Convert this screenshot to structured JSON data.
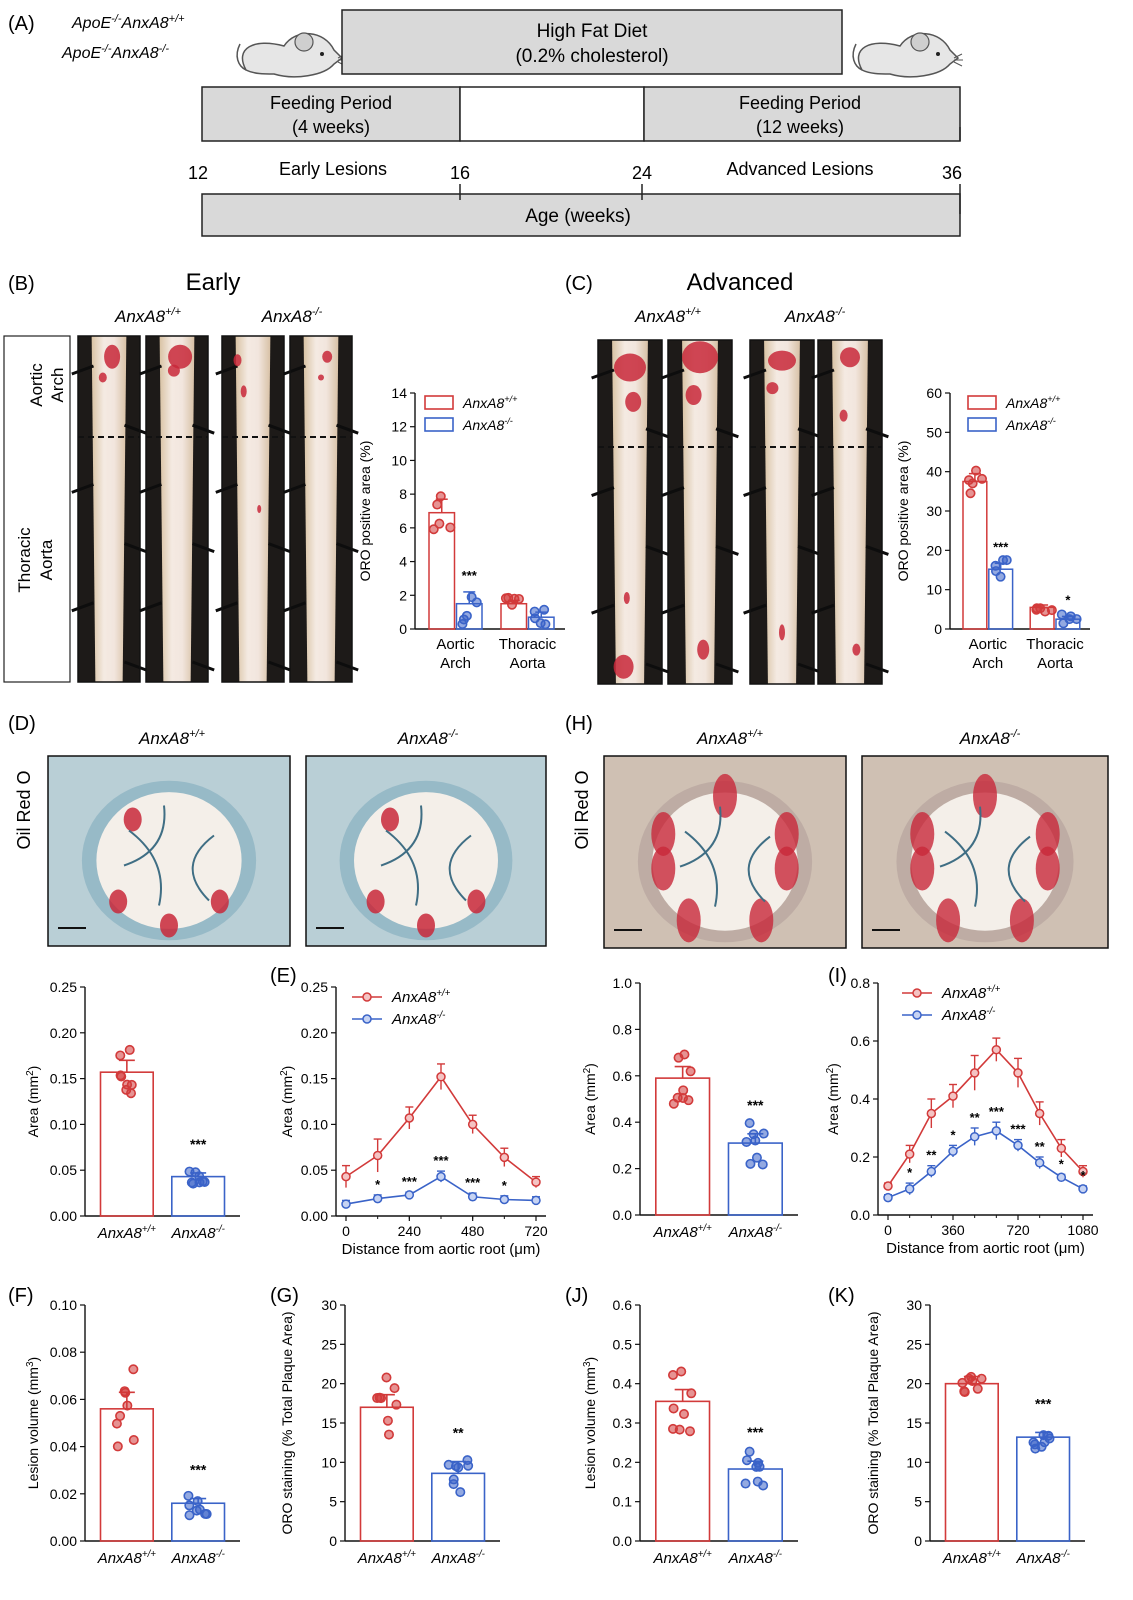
{
  "colors": {
    "wt": "#d23a3a",
    "ko": "#3a63c8",
    "bar_grey": "#d9d9d9"
  },
  "schematic": {
    "panel_label": "(A)",
    "genotype_wt": "ApoE-/-AnxA8+/+",
    "genotype_ko": "ApoE-/-AnxA8-/-",
    "diet_line1": "High Fat Diet",
    "diet_line2": "(0.2% cholesterol)",
    "feed_early_line1": "Feeding Period",
    "feed_early_line2": "(4 weeks)",
    "feed_adv_line1": "Feeding Period",
    "feed_adv_line2": "(12 weeks)",
    "early_label": "Early Lesions",
    "adv_label": "Advanced Lesions",
    "ticks": [
      "12",
      "16",
      "24",
      "36"
    ],
    "age_label": "Age (weeks)"
  },
  "panel_b": {
    "label": "(B)",
    "title": "Early",
    "wt": "AnxA8+/+",
    "ko": "AnxA8-/-",
    "region1": "Aortic Arch",
    "region2": "Thoracic Aorta"
  },
  "panel_c": {
    "label": "(C)",
    "title": "Advanced",
    "wt": "AnxA8+/+",
    "ko": "AnxA8-/-"
  },
  "panel_d": {
    "label": "(D)",
    "wt": "AnxA8+/+",
    "ko": "AnxA8-/-",
    "stain": "Oil Red O"
  },
  "panel_h": {
    "label": "(H)",
    "wt": "AnxA8+/+",
    "ko": "AnxA8-/-",
    "stain": "Oil Red O"
  },
  "panel_labels": {
    "e": "(E)",
    "i": "(I)",
    "f": "(F)",
    "g": "(G)",
    "j": "(J)",
    "k": "(K)"
  },
  "chart_data": [
    {
      "id": "B",
      "type": "bar",
      "ylabel": "ORO positive area (%)",
      "ylim": [
        0,
        14
      ],
      "yticks": [
        "0",
        "2",
        "4",
        "6",
        "8",
        "10",
        "12",
        "14"
      ],
      "categories": [
        "Aortic Arch",
        "Thoracic Aorta"
      ],
      "legend": [
        "AnxA8+/+",
        "AnxA8-/-"
      ],
      "series": [
        {
          "name": "AnxA8+/+",
          "values": [
            6.9,
            1.5
          ],
          "sem": [
            0.8,
            0.2
          ]
        },
        {
          "name": "AnxA8-/-",
          "values": [
            1.5,
            0.7
          ],
          "sem": [
            0.7,
            0.3
          ]
        }
      ],
      "significance": [
        "***",
        ""
      ]
    },
    {
      "id": "C",
      "type": "bar",
      "ylabel": "ORO positive area (%)",
      "ylim": [
        0,
        60
      ],
      "yticks": [
        "0",
        "10",
        "20",
        "30",
        "40",
        "50",
        "60"
      ],
      "categories": [
        "Aortic Arch",
        "Thoracic Aorta"
      ],
      "legend": [
        "AnxA8+/+",
        "AnxA8-/-"
      ],
      "series": [
        {
          "name": "AnxA8+/+",
          "values": [
            37.5,
            5.5
          ],
          "sem": [
            2.0,
            0.6
          ]
        },
        {
          "name": "AnxA8-/-",
          "values": [
            15.2,
            2.5
          ],
          "sem": [
            1.5,
            0.7
          ]
        }
      ],
      "significance": [
        "***",
        "*"
      ]
    },
    {
      "id": "D2",
      "type": "bar",
      "ylabel": "Area (mm2)",
      "ylim": [
        0,
        0.25
      ],
      "yticks": [
        "0.00",
        "0.05",
        "0.10",
        "0.15",
        "0.20",
        "0.25"
      ],
      "categories": [
        "AnxA8+/+",
        "AnxA8-/-"
      ],
      "values": [
        0.157,
        0.043
      ],
      "sem": [
        0.013,
        0.004
      ],
      "significance": "***"
    },
    {
      "id": "E",
      "type": "line",
      "ylabel": "Area (mm2)",
      "xlabel": "Distance from aortic root (μm)",
      "ylim": [
        0,
        0.25
      ],
      "xlim": [
        0,
        720
      ],
      "yticks": [
        "0.00",
        "0.05",
        "0.10",
        "0.15",
        "0.20",
        "0.25"
      ],
      "xticks": [
        "0",
        "240",
        "480",
        "720"
      ],
      "x": [
        0,
        120,
        240,
        360,
        480,
        600,
        720
      ],
      "legend": [
        "AnxA8+/+",
        "AnxA8-/-"
      ],
      "series": [
        {
          "name": "AnxA8+/+",
          "values": [
            0.043,
            0.066,
            0.107,
            0.152,
            0.1,
            0.064,
            0.037
          ],
          "sem": [
            0.012,
            0.018,
            0.012,
            0.014,
            0.01,
            0.01,
            0.006
          ]
        },
        {
          "name": "AnxA8-/-",
          "values": [
            0.013,
            0.019,
            0.023,
            0.043,
            0.021,
            0.018,
            0.017
          ],
          "sem": [
            0.004,
            0.004,
            0.003,
            0.006,
            0.004,
            0.004,
            0.004
          ]
        }
      ],
      "significance": [
        "",
        "*",
        "***",
        "***",
        "***",
        "*",
        ""
      ]
    },
    {
      "id": "H2",
      "type": "bar",
      "ylabel": "Area (mm2)",
      "ylim": [
        0,
        1.0
      ],
      "yticks": [
        "0.0",
        "0.2",
        "0.4",
        "0.6",
        "0.8",
        "1.0"
      ],
      "categories": [
        "AnxA8+/+",
        "AnxA8-/-"
      ],
      "values": [
        0.59,
        0.31
      ],
      "sem": [
        0.05,
        0.04
      ],
      "significance": "***"
    },
    {
      "id": "I",
      "type": "line",
      "ylabel": "Area (mm2)",
      "xlabel": "Distance from aortic root (μm)",
      "ylim": [
        0,
        0.8
      ],
      "xlim": [
        0,
        1080
      ],
      "yticks": [
        "0.0",
        "0.2",
        "0.4",
        "0.6",
        "0.8"
      ],
      "xticks": [
        "0",
        "360",
        "720",
        "1080"
      ],
      "x": [
        0,
        120,
        240,
        360,
        480,
        600,
        720,
        840,
        960,
        1080
      ],
      "legend": [
        "AnxA8+/+",
        "AnxA8-/-"
      ],
      "series": [
        {
          "name": "AnxA8+/+",
          "values": [
            0.1,
            0.21,
            0.35,
            0.41,
            0.49,
            0.57,
            0.49,
            0.35,
            0.23,
            0.15
          ],
          "sem": [
            0.01,
            0.03,
            0.05,
            0.04,
            0.06,
            0.04,
            0.05,
            0.04,
            0.03,
            0.02
          ]
        },
        {
          "name": "AnxA8-/-",
          "values": [
            0.06,
            0.09,
            0.15,
            0.22,
            0.27,
            0.29,
            0.24,
            0.18,
            0.13,
            0.09
          ],
          "sem": [
            0.01,
            0.02,
            0.02,
            0.02,
            0.03,
            0.03,
            0.02,
            0.02,
            0.01,
            0.01
          ]
        }
      ],
      "significance": [
        "",
        "*",
        "**",
        "*",
        "**",
        "***",
        "***",
        "**",
        "*",
        "*"
      ]
    },
    {
      "id": "F",
      "type": "bar",
      "ylabel": "Lesion volume (mm3)",
      "ylim": [
        0,
        0.1
      ],
      "yticks": [
        "0.00",
        "0.02",
        "0.04",
        "0.06",
        "0.08",
        "0.10"
      ],
      "categories": [
        "AnxA8+/+",
        "AnxA8-/-"
      ],
      "values": [
        0.056,
        0.016
      ],
      "sem": [
        0.007,
        0.002
      ],
      "significance": "***"
    },
    {
      "id": "G",
      "type": "bar",
      "ylabel": "ORO staining (% Total Plaque Area)",
      "ylim": [
        0,
        30
      ],
      "yticks": [
        "0",
        "5",
        "10",
        "15",
        "20",
        "25",
        "30"
      ],
      "categories": [
        "AnxA8+/+",
        "AnxA8-/-"
      ],
      "values": [
        17.0,
        8.6
      ],
      "sem": [
        1.6,
        1.5
      ],
      "significance": "**"
    },
    {
      "id": "J",
      "type": "bar",
      "ylabel": "Lesion volume (mm3)",
      "ylim": [
        0,
        0.6
      ],
      "yticks": [
        "0.0",
        "0.1",
        "0.2",
        "0.3",
        "0.4",
        "0.5",
        "0.6"
      ],
      "categories": [
        "AnxA8+/+",
        "AnxA8-/-"
      ],
      "values": [
        0.355,
        0.183
      ],
      "sem": [
        0.03,
        0.02
      ],
      "significance": "***"
    },
    {
      "id": "K",
      "type": "bar",
      "ylabel": "ORO staining (% Total Plaque Area)",
      "ylim": [
        0,
        30
      ],
      "yticks": [
        "0",
        "5",
        "10",
        "15",
        "20",
        "25",
        "30"
      ],
      "categories": [
        "AnxA8+/+",
        "AnxA8-/-"
      ],
      "values": [
        20.0,
        13.2
      ],
      "sem": [
        0.9,
        0.6
      ],
      "significance": "***"
    }
  ]
}
